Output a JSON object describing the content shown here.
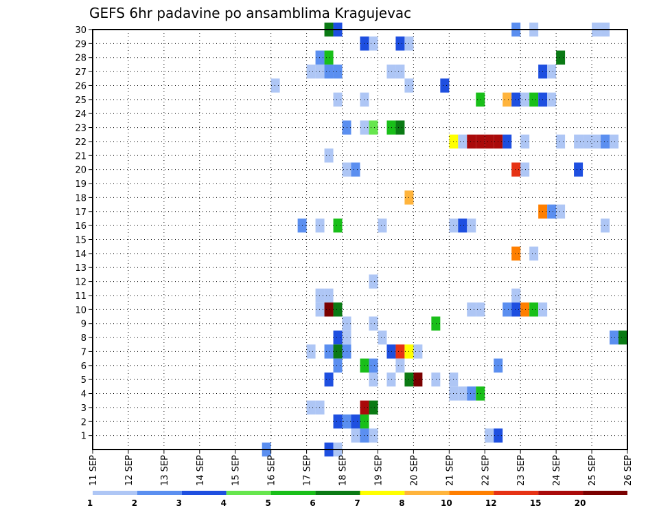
{
  "chart_data": {
    "type": "heatmap",
    "title": "GEFS 6hr padavine po ansamblima Kragujevac",
    "x_tick_labels": [
      "11 SEP",
      "12 SEP",
      "13 SEP",
      "14 SEP",
      "15 SEP",
      "16 SEP",
      "17 SEP",
      "18 SEP",
      "19 SEP",
      "20 SEP",
      "21 SEP",
      "22 SEP",
      "23 SEP",
      "24 SEP",
      "25 SEP",
      "26 SEP"
    ],
    "y_tick_labels": [
      "1",
      "2",
      "3",
      "4",
      "5",
      "6",
      "7",
      "8",
      "9",
      "10",
      "11",
      "12",
      "13",
      "14",
      "15",
      "16",
      "17",
      "18",
      "19",
      "20",
      "21",
      "22",
      "23",
      "24",
      "25",
      "26",
      "27",
      "28",
      "29",
      "30"
    ],
    "x_range_days": [
      11,
      26
    ],
    "x_step_hours": 6,
    "y_range": [
      0,
      30
    ],
    "grid": true,
    "legend": {
      "position": "bottom",
      "labels": [
        "1",
        "2",
        "3",
        "4",
        "5",
        "6",
        "7",
        "8",
        "10",
        "12",
        "15",
        "20"
      ],
      "colors": [
        "#aec6f5",
        "#5b8ff0",
        "#1e4fe0",
        "#66e64d",
        "#19bf19",
        "#0a7a14",
        "#ffff00",
        "#ffb43c",
        "#ff7f00",
        "#e63214",
        "#aa0a0a",
        "#7a0000"
      ]
    },
    "cells": [
      {
        "x": "17 SEP 12",
        "y": 30,
        "level": "6"
      },
      {
        "x": "17 SEP 18",
        "y": 30,
        "level": "3"
      },
      {
        "x": "22 SEP 18",
        "y": 30,
        "level": "2"
      },
      {
        "x": "23 SEP 06",
        "y": 30,
        "level": "1"
      },
      {
        "x": "25 SEP 00",
        "y": 30,
        "level": "1"
      },
      {
        "x": "25 SEP 06",
        "y": 30,
        "level": "1"
      },
      {
        "x": "18 SEP 12",
        "y": 29,
        "level": "3"
      },
      {
        "x": "18 SEP 18",
        "y": 29,
        "level": "1"
      },
      {
        "x": "19 SEP 12",
        "y": 29,
        "level": "3"
      },
      {
        "x": "19 SEP 18",
        "y": 29,
        "level": "1"
      },
      {
        "x": "17 SEP 06",
        "y": 28,
        "level": "2"
      },
      {
        "x": "17 SEP 12",
        "y": 28,
        "level": "5"
      },
      {
        "x": "24 SEP 00",
        "y": 28,
        "level": "6"
      },
      {
        "x": "17 SEP 00",
        "y": 27,
        "level": "1"
      },
      {
        "x": "17 SEP 06",
        "y": 27,
        "level": "1"
      },
      {
        "x": "17 SEP 12",
        "y": 27,
        "level": "2"
      },
      {
        "x": "17 SEP 18",
        "y": 27,
        "level": "2"
      },
      {
        "x": "19 SEP 06",
        "y": 27,
        "level": "1"
      },
      {
        "x": "19 SEP 12",
        "y": 27,
        "level": "1"
      },
      {
        "x": "23 SEP 12",
        "y": 27,
        "level": "3"
      },
      {
        "x": "23 SEP 18",
        "y": 27,
        "level": "1"
      },
      {
        "x": "16 SEP 00",
        "y": 26,
        "level": "1"
      },
      {
        "x": "19 SEP 18",
        "y": 26,
        "level": "1"
      },
      {
        "x": "20 SEP 18",
        "y": 26,
        "level": "3"
      },
      {
        "x": "17 SEP 18",
        "y": 25,
        "level": "1"
      },
      {
        "x": "18 SEP 12",
        "y": 25,
        "level": "1"
      },
      {
        "x": "21 SEP 18",
        "y": 25,
        "level": "5"
      },
      {
        "x": "22 SEP 12",
        "y": 25,
        "level": "8"
      },
      {
        "x": "22 SEP 18",
        "y": 25,
        "level": "3"
      },
      {
        "x": "23 SEP 00",
        "y": 25,
        "level": "1"
      },
      {
        "x": "23 SEP 06",
        "y": 25,
        "level": "5"
      },
      {
        "x": "23 SEP 12",
        "y": 25,
        "level": "3"
      },
      {
        "x": "23 SEP 18",
        "y": 25,
        "level": "1"
      },
      {
        "x": "18 SEP 00",
        "y": 23,
        "level": "2"
      },
      {
        "x": "18 SEP 12",
        "y": 23,
        "level": "1"
      },
      {
        "x": "18 SEP 18",
        "y": 23,
        "level": "4"
      },
      {
        "x": "19 SEP 06",
        "y": 23,
        "level": "5"
      },
      {
        "x": "19 SEP 12",
        "y": 23,
        "level": "6"
      },
      {
        "x": "21 SEP 00",
        "y": 22,
        "level": "7"
      },
      {
        "x": "21 SEP 06",
        "y": 22,
        "level": "1"
      },
      {
        "x": "21 SEP 12",
        "y": 22,
        "level": "15"
      },
      {
        "x": "21 SEP 18",
        "y": 22,
        "level": "15"
      },
      {
        "x": "22 SEP 00",
        "y": 22,
        "level": "15"
      },
      {
        "x": "22 SEP 06",
        "y": 22,
        "level": "15"
      },
      {
        "x": "22 SEP 12",
        "y": 22,
        "level": "3"
      },
      {
        "x": "23 SEP 00",
        "y": 22,
        "level": "1"
      },
      {
        "x": "24 SEP 00",
        "y": 22,
        "level": "1"
      },
      {
        "x": "24 SEP 12",
        "y": 22,
        "level": "1"
      },
      {
        "x": "24 SEP 18",
        "y": 22,
        "level": "1"
      },
      {
        "x": "25 SEP 00",
        "y": 22,
        "level": "1"
      },
      {
        "x": "25 SEP 06",
        "y": 22,
        "level": "2"
      },
      {
        "x": "25 SEP 12",
        "y": 22,
        "level": "1"
      },
      {
        "x": "17 SEP 12",
        "y": 21,
        "level": "1"
      },
      {
        "x": "18 SEP 00",
        "y": 20,
        "level": "1"
      },
      {
        "x": "18 SEP 06",
        "y": 20,
        "level": "2"
      },
      {
        "x": "22 SEP 18",
        "y": 20,
        "level": "12"
      },
      {
        "x": "23 SEP 00",
        "y": 20,
        "level": "1"
      },
      {
        "x": "24 SEP 12",
        "y": 20,
        "level": "3"
      },
      {
        "x": "19 SEP 18",
        "y": 18,
        "level": "8"
      },
      {
        "x": "23 SEP 12",
        "y": 17,
        "level": "10"
      },
      {
        "x": "23 SEP 18",
        "y": 17,
        "level": "2"
      },
      {
        "x": "24 SEP 00",
        "y": 17,
        "level": "1"
      },
      {
        "x": "16 SEP 18",
        "y": 16,
        "level": "2"
      },
      {
        "x": "17 SEP 06",
        "y": 16,
        "level": "1"
      },
      {
        "x": "17 SEP 18",
        "y": 16,
        "level": "5"
      },
      {
        "x": "19 SEP 00",
        "y": 16,
        "level": "1"
      },
      {
        "x": "21 SEP 00",
        "y": 16,
        "level": "1"
      },
      {
        "x": "21 SEP 06",
        "y": 16,
        "level": "3"
      },
      {
        "x": "21 SEP 12",
        "y": 16,
        "level": "1"
      },
      {
        "x": "25 SEP 06",
        "y": 16,
        "level": "1"
      },
      {
        "x": "22 SEP 18",
        "y": 14,
        "level": "10"
      },
      {
        "x": "23 SEP 06",
        "y": 14,
        "level": "1"
      },
      {
        "x": "18 SEP 18",
        "y": 12,
        "level": "1"
      },
      {
        "x": "22 SEP 18",
        "y": 11,
        "level": "1"
      },
      {
        "x": "17 SEP 06",
        "y": 11,
        "level": "1"
      },
      {
        "x": "17 SEP 12",
        "y": 11,
        "level": "1"
      },
      {
        "x": "17 SEP 06",
        "y": 10,
        "level": "1"
      },
      {
        "x": "17 SEP 12",
        "y": 10,
        "level": "20"
      },
      {
        "x": "17 SEP 18",
        "y": 10,
        "level": "6"
      },
      {
        "x": "21 SEP 12",
        "y": 10,
        "level": "1"
      },
      {
        "x": "21 SEP 18",
        "y": 10,
        "level": "1"
      },
      {
        "x": "22 SEP 12",
        "y": 10,
        "level": "2"
      },
      {
        "x": "22 SEP 18",
        "y": 10,
        "level": "3"
      },
      {
        "x": "23 SEP 00",
        "y": 10,
        "level": "10"
      },
      {
        "x": "23 SEP 06",
        "y": 10,
        "level": "5"
      },
      {
        "x": "23 SEP 12",
        "y": 10,
        "level": "1"
      },
      {
        "x": "18 SEP 00",
        "y": 9,
        "level": "1"
      },
      {
        "x": "18 SEP 18",
        "y": 9,
        "level": "1"
      },
      {
        "x": "20 SEP 12",
        "y": 9,
        "level": "5"
      },
      {
        "x": "17 SEP 18",
        "y": 8,
        "level": "3"
      },
      {
        "x": "18 SEP 00",
        "y": 8,
        "level": "1"
      },
      {
        "x": "19 SEP 00",
        "y": 8,
        "level": "1"
      },
      {
        "x": "25 SEP 12",
        "y": 8,
        "level": "2"
      },
      {
        "x": "25 SEP 18",
        "y": 8,
        "level": "6"
      },
      {
        "x": "17 SEP 00",
        "y": 7,
        "level": "1"
      },
      {
        "x": "17 SEP 12",
        "y": 7,
        "level": "2"
      },
      {
        "x": "17 SEP 18",
        "y": 7,
        "level": "6"
      },
      {
        "x": "18 SEP 00",
        "y": 7,
        "level": "2"
      },
      {
        "x": "19 SEP 06",
        "y": 7,
        "level": "3"
      },
      {
        "x": "19 SEP 12",
        "y": 7,
        "level": "12"
      },
      {
        "x": "19 SEP 18",
        "y": 7,
        "level": "7"
      },
      {
        "x": "20 SEP 00",
        "y": 7,
        "level": "1"
      },
      {
        "x": "17 SEP 18",
        "y": 6,
        "level": "2"
      },
      {
        "x": "18 SEP 12",
        "y": 6,
        "level": "5"
      },
      {
        "x": "18 SEP 18",
        "y": 6,
        "level": "2"
      },
      {
        "x": "19 SEP 12",
        "y": 6,
        "level": "1"
      },
      {
        "x": "22 SEP 06",
        "y": 6,
        "level": "2"
      },
      {
        "x": "17 SEP 12",
        "y": 5,
        "level": "3"
      },
      {
        "x": "18 SEP 18",
        "y": 5,
        "level": "1"
      },
      {
        "x": "19 SEP 06",
        "y": 5,
        "level": "1"
      },
      {
        "x": "19 SEP 18",
        "y": 5,
        "level": "6"
      },
      {
        "x": "20 SEP 00",
        "y": 5,
        "level": "20"
      },
      {
        "x": "20 SEP 12",
        "y": 5,
        "level": "1"
      },
      {
        "x": "21 SEP 00",
        "y": 5,
        "level": "1"
      },
      {
        "x": "21 SEP 00",
        "y": 4,
        "level": "1"
      },
      {
        "x": "21 SEP 06",
        "y": 4,
        "level": "1"
      },
      {
        "x": "21 SEP 12",
        "y": 4,
        "level": "2"
      },
      {
        "x": "21 SEP 18",
        "y": 4,
        "level": "5"
      },
      {
        "x": "17 SEP 00",
        "y": 3,
        "level": "1"
      },
      {
        "x": "17 SEP 06",
        "y": 3,
        "level": "1"
      },
      {
        "x": "18 SEP 12",
        "y": 3,
        "level": "15"
      },
      {
        "x": "18 SEP 18",
        "y": 3,
        "level": "6"
      },
      {
        "x": "17 SEP 18",
        "y": 2,
        "level": "3"
      },
      {
        "x": "18 SEP 00",
        "y": 2,
        "level": "2"
      },
      {
        "x": "18 SEP 06",
        "y": 2,
        "level": "3"
      },
      {
        "x": "18 SEP 12",
        "y": 2,
        "level": "5"
      },
      {
        "x": "18 SEP 06",
        "y": 1,
        "level": "1"
      },
      {
        "x": "18 SEP 12",
        "y": 1,
        "level": "2"
      },
      {
        "x": "18 SEP 18",
        "y": 1,
        "level": "1"
      },
      {
        "x": "22 SEP 00",
        "y": 1,
        "level": "1"
      },
      {
        "x": "22 SEP 06",
        "y": 1,
        "level": "3"
      },
      {
        "x": "15 SEP 18",
        "y": 0,
        "level": "2"
      },
      {
        "x": "17 SEP 12",
        "y": 0,
        "level": "3"
      },
      {
        "x": "17 SEP 18",
        "y": 0,
        "level": "1"
      }
    ]
  }
}
